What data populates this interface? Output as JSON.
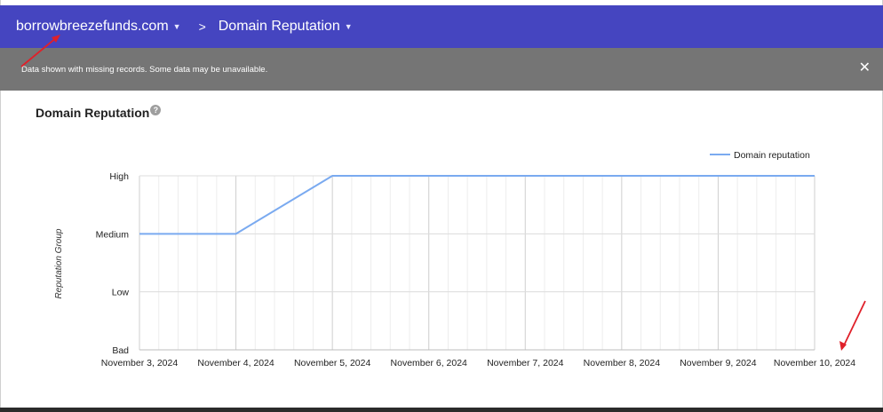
{
  "header": {
    "domain_label": "borrowbreezefunds.com",
    "separator": ">",
    "section_label": "Domain Reputation"
  },
  "notice": {
    "text": "Data shown with missing records. Some data may be unavailable.",
    "close_glyph": "✕"
  },
  "card": {
    "title": "Domain Reputation",
    "help_glyph": "?"
  },
  "colors": {
    "header_bg": "#4545c0",
    "notice_bg": "#757575",
    "series_line": "#7aaaf0",
    "annotation_arrow": "#e0202a"
  },
  "chart_data": {
    "type": "line",
    "title": "",
    "xlabel": "",
    "ylabel": "Reputation Group",
    "x": [
      "November 3, 2024",
      "November 4, 2024",
      "November 5, 2024",
      "November 6, 2024",
      "November 7, 2024",
      "November 8, 2024",
      "November 9, 2024",
      "November 10, 2024"
    ],
    "y_categories": [
      "Bad",
      "Low",
      "Medium",
      "High"
    ],
    "series": [
      {
        "name": "Domain reputation",
        "values": [
          "Medium",
          "Medium",
          "High",
          "High",
          "High",
          "High",
          "High",
          "High"
        ]
      }
    ],
    "legend_position": "top-right",
    "grid": true
  }
}
